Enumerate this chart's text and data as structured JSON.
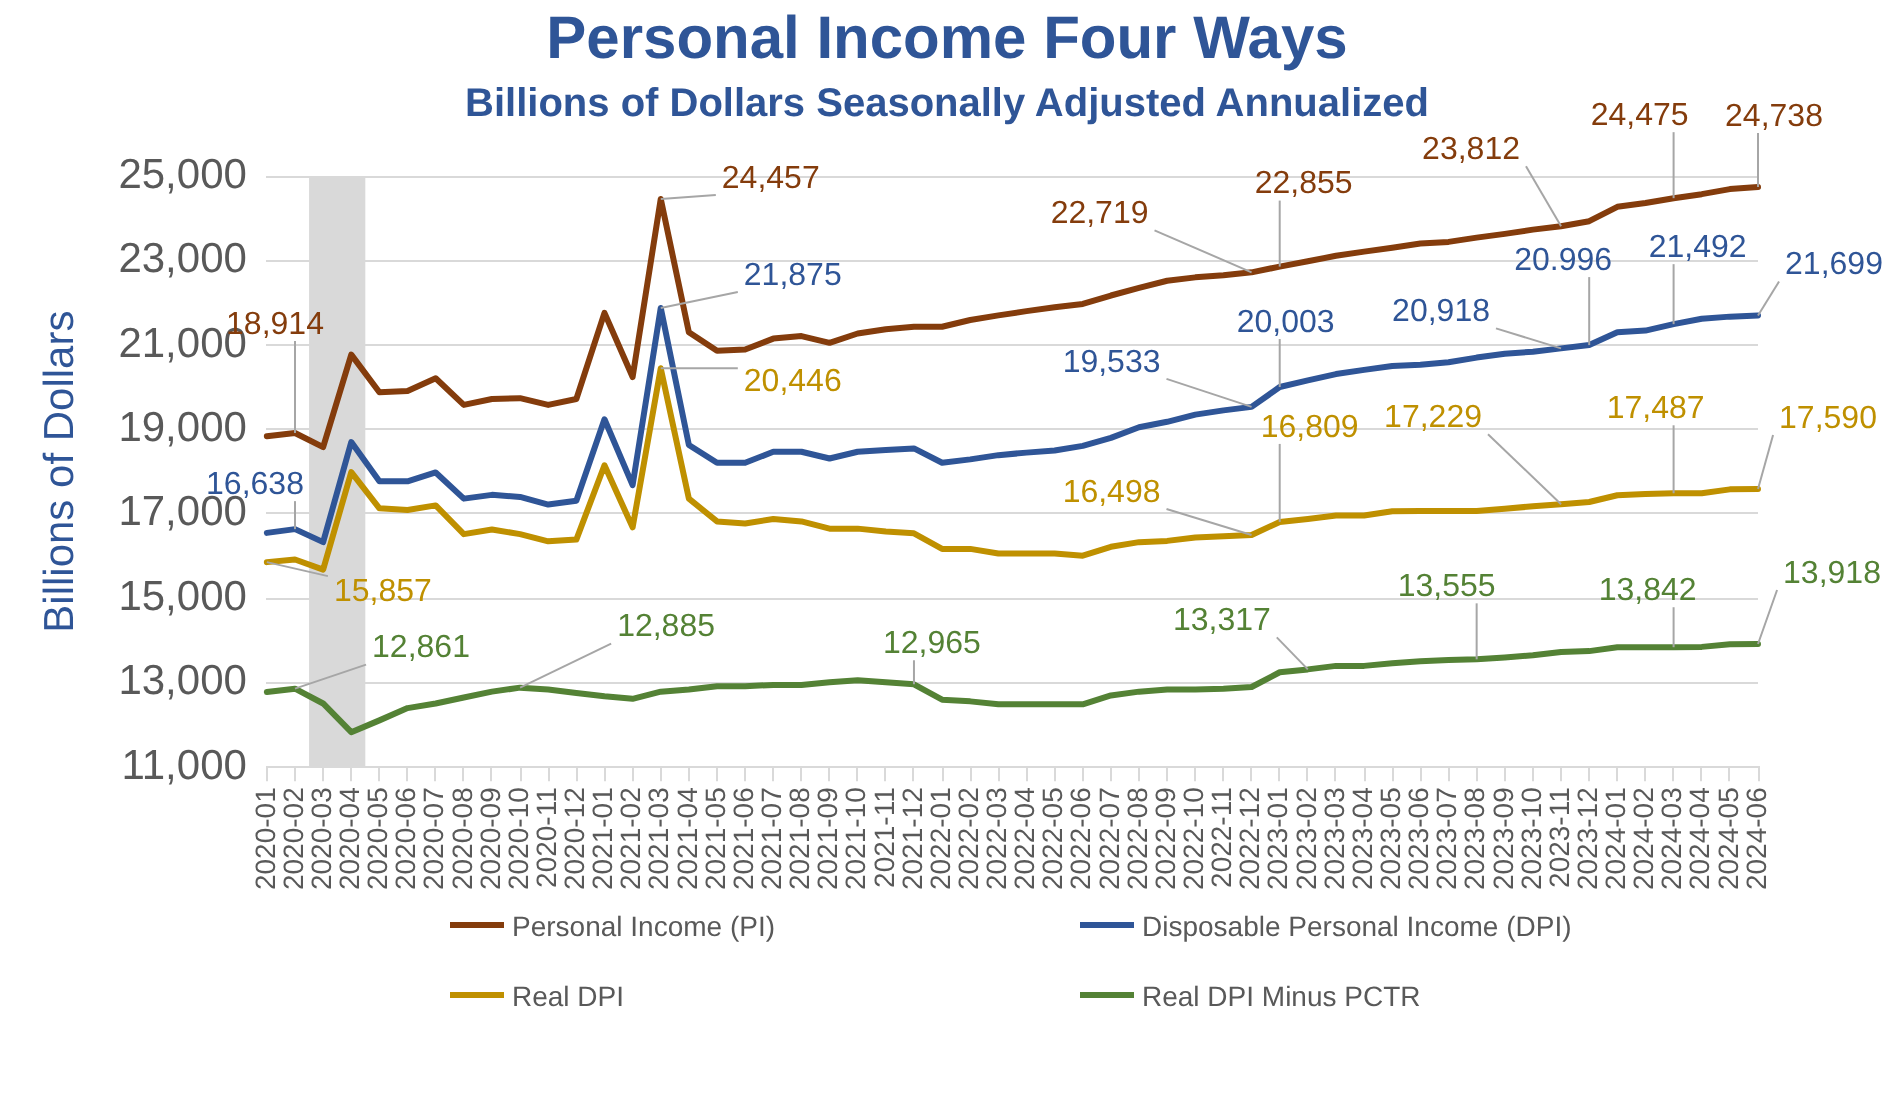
{
  "chart_data": {
    "type": "line",
    "title": "Personal Income Four Ways",
    "subtitle": "Billions of Dollars Seasonally Adjusted Annualized",
    "ylabel": "Billions of Dollars",
    "categories": [
      "2020-01",
      "2020-02",
      "2020-03",
      "2020-04",
      "2020-05",
      "2020-06",
      "2020-07",
      "2020-08",
      "2020-09",
      "2020-10",
      "2020-11",
      "2020-12",
      "2021-01",
      "2021-02",
      "2021-03",
      "2021-04",
      "2021-05",
      "2021-06",
      "2021-07",
      "2021-08",
      "2021-09",
      "2021-10",
      "2021-11",
      "2021-12",
      "2022-01",
      "2022-02",
      "2022-03",
      "2022-04",
      "2022-05",
      "2022-06",
      "2022-07",
      "2022-08",
      "2022-09",
      "2022-10",
      "2022-11",
      "2022-12",
      "2023-01",
      "2023-02",
      "2023-03",
      "2023-04",
      "2023-05",
      "2023-06",
      "2023-07",
      "2023-08",
      "2023-09",
      "2023-10",
      "2023-11",
      "2023-12",
      "2024-01",
      "2024-02",
      "2024-03",
      "2024-04",
      "2024-05",
      "2024-06"
    ],
    "series": [
      {
        "name": "Personal Income (PI)",
        "color": "#843c0c",
        "values": [
          18840,
          18914,
          18580,
          20770,
          19880,
          19910,
          20210,
          19580,
          19720,
          19740,
          19580,
          19720,
          21760,
          20240,
          24457,
          21300,
          20860,
          20890,
          21150,
          21210,
          21050,
          21270,
          21370,
          21430,
          21430,
          21590,
          21700,
          21800,
          21890,
          21970,
          22170,
          22350,
          22520,
          22600,
          22650,
          22719,
          22855,
          22980,
          23110,
          23210,
          23300,
          23400,
          23440,
          23540,
          23630,
          23730,
          23812,
          23930,
          24270,
          24360,
          24475,
          24570,
          24690,
          24738
        ],
        "value_labels": [
          null,
          "18,914",
          null,
          null,
          null,
          null,
          null,
          null,
          null,
          null,
          null,
          null,
          null,
          null,
          "24,457",
          null,
          null,
          null,
          null,
          null,
          null,
          null,
          null,
          null,
          null,
          null,
          null,
          null,
          null,
          null,
          null,
          null,
          null,
          null,
          null,
          "22,719",
          "22,855",
          null,
          null,
          null,
          null,
          null,
          null,
          null,
          null,
          null,
          "23,812",
          null,
          null,
          null,
          "24,475",
          null,
          null,
          "24,738"
        ]
      },
      {
        "name": "Disposable Personal Income (DPI)",
        "color": "#2f5597",
        "values": [
          16550,
          16638,
          16330,
          18700,
          17770,
          17770,
          17980,
          17360,
          17450,
          17400,
          17220,
          17310,
          19240,
          17680,
          21875,
          18630,
          18210,
          18210,
          18470,
          18470,
          18310,
          18470,
          18510,
          18550,
          18210,
          18290,
          18390,
          18450,
          18500,
          18610,
          18800,
          19050,
          19180,
          19350,
          19450,
          19533,
          20003,
          20160,
          20310,
          20410,
          20500,
          20530,
          20590,
          20700,
          20790,
          20840,
          20918,
          20996,
          21300,
          21340,
          21492,
          21620,
          21670,
          21699
        ],
        "value_labels": [
          null,
          "16,638",
          null,
          null,
          null,
          null,
          null,
          null,
          null,
          null,
          null,
          null,
          null,
          null,
          "21,875",
          null,
          null,
          null,
          null,
          null,
          null,
          null,
          null,
          null,
          null,
          null,
          null,
          null,
          null,
          null,
          null,
          null,
          null,
          null,
          null,
          "19,533",
          "20,003",
          null,
          null,
          null,
          null,
          null,
          null,
          null,
          null,
          null,
          "20,918",
          null,
          null,
          null,
          "21,492",
          null,
          null,
          "21,699"
        ]
      },
      {
        "name": "Real DPI",
        "color": "#bf9000",
        "values": [
          15857,
          15920,
          15680,
          17990,
          17130,
          17090,
          17200,
          16520,
          16630,
          16520,
          16350,
          16390,
          18150,
          16680,
          20446,
          17360,
          16820,
          16770,
          16880,
          16820,
          16650,
          16650,
          16580,
          16540,
          16170,
          16170,
          16060,
          16060,
          16060,
          16010,
          16220,
          16330,
          16360,
          16440,
          16470,
          16498,
          16809,
          16880,
          16960,
          16960,
          17060,
          17070,
          17070,
          17070,
          17120,
          17180,
          17229,
          17280,
          17440,
          17470,
          17487,
          17490,
          17580,
          17590
        ],
        "value_labels": [
          "15,857",
          null,
          null,
          null,
          null,
          null,
          null,
          null,
          null,
          null,
          null,
          null,
          null,
          null,
          "20,446",
          null,
          null,
          null,
          null,
          null,
          null,
          null,
          null,
          null,
          null,
          null,
          null,
          null,
          null,
          null,
          null,
          null,
          null,
          null,
          null,
          "16,498",
          "16,809",
          null,
          null,
          null,
          null,
          null,
          null,
          null,
          null,
          null,
          "17,229",
          null,
          null,
          null,
          "17,487",
          null,
          null,
          "17,590"
        ]
      },
      {
        "name": "Real DPI Minus PCTR",
        "color": "#548235",
        "values": [
          12780,
          12861,
          12510,
          11830,
          12110,
          12400,
          12510,
          12650,
          12790,
          12885,
          12840,
          12760,
          12680,
          12620,
          12790,
          12840,
          12920,
          12920,
          12950,
          12950,
          13010,
          13060,
          13010,
          12965,
          12600,
          12560,
          12490,
          12490,
          12490,
          12490,
          12700,
          12790,
          12840,
          12840,
          12860,
          12900,
          13250,
          13317,
          13400,
          13400,
          13460,
          13510,
          13540,
          13555,
          13600,
          13650,
          13730,
          13750,
          13840,
          13840,
          13842,
          13850,
          13910,
          13918
        ],
        "value_labels": [
          null,
          "12,861",
          null,
          null,
          null,
          null,
          null,
          null,
          null,
          "12,885",
          null,
          null,
          null,
          null,
          null,
          null,
          null,
          null,
          null,
          null,
          null,
          null,
          null,
          "12,965",
          null,
          null,
          null,
          null,
          null,
          null,
          null,
          null,
          null,
          null,
          null,
          null,
          null,
          "13,317",
          null,
          null,
          null,
          null,
          null,
          "13,555",
          null,
          null,
          null,
          null,
          null,
          null,
          "13,842",
          null,
          null,
          "13,918"
        ]
      }
    ],
    "annotations": [
      {
        "text": "20.996",
        "x": "2023-12",
        "y": 20996
      }
    ],
    "ylim": [
      11000,
      25000
    ],
    "yticks": [
      {
        "value": 11000,
        "label": "11,000"
      },
      {
        "value": 13000,
        "label": "13,000"
      },
      {
        "value": 15000,
        "label": "15,000"
      },
      {
        "value": 17000,
        "label": "17,000"
      },
      {
        "value": 19000,
        "label": "19,000"
      },
      {
        "value": 21000,
        "label": "21,000"
      },
      {
        "value": 23000,
        "label": "23,000"
      },
      {
        "value": 25000,
        "label": "25,000"
      }
    ],
    "bands": [
      {
        "axis": "x",
        "from": "2020-03",
        "to": "2020-04",
        "color": "#d9d9d9"
      }
    ],
    "grid": "y",
    "legend": "bottom"
  }
}
